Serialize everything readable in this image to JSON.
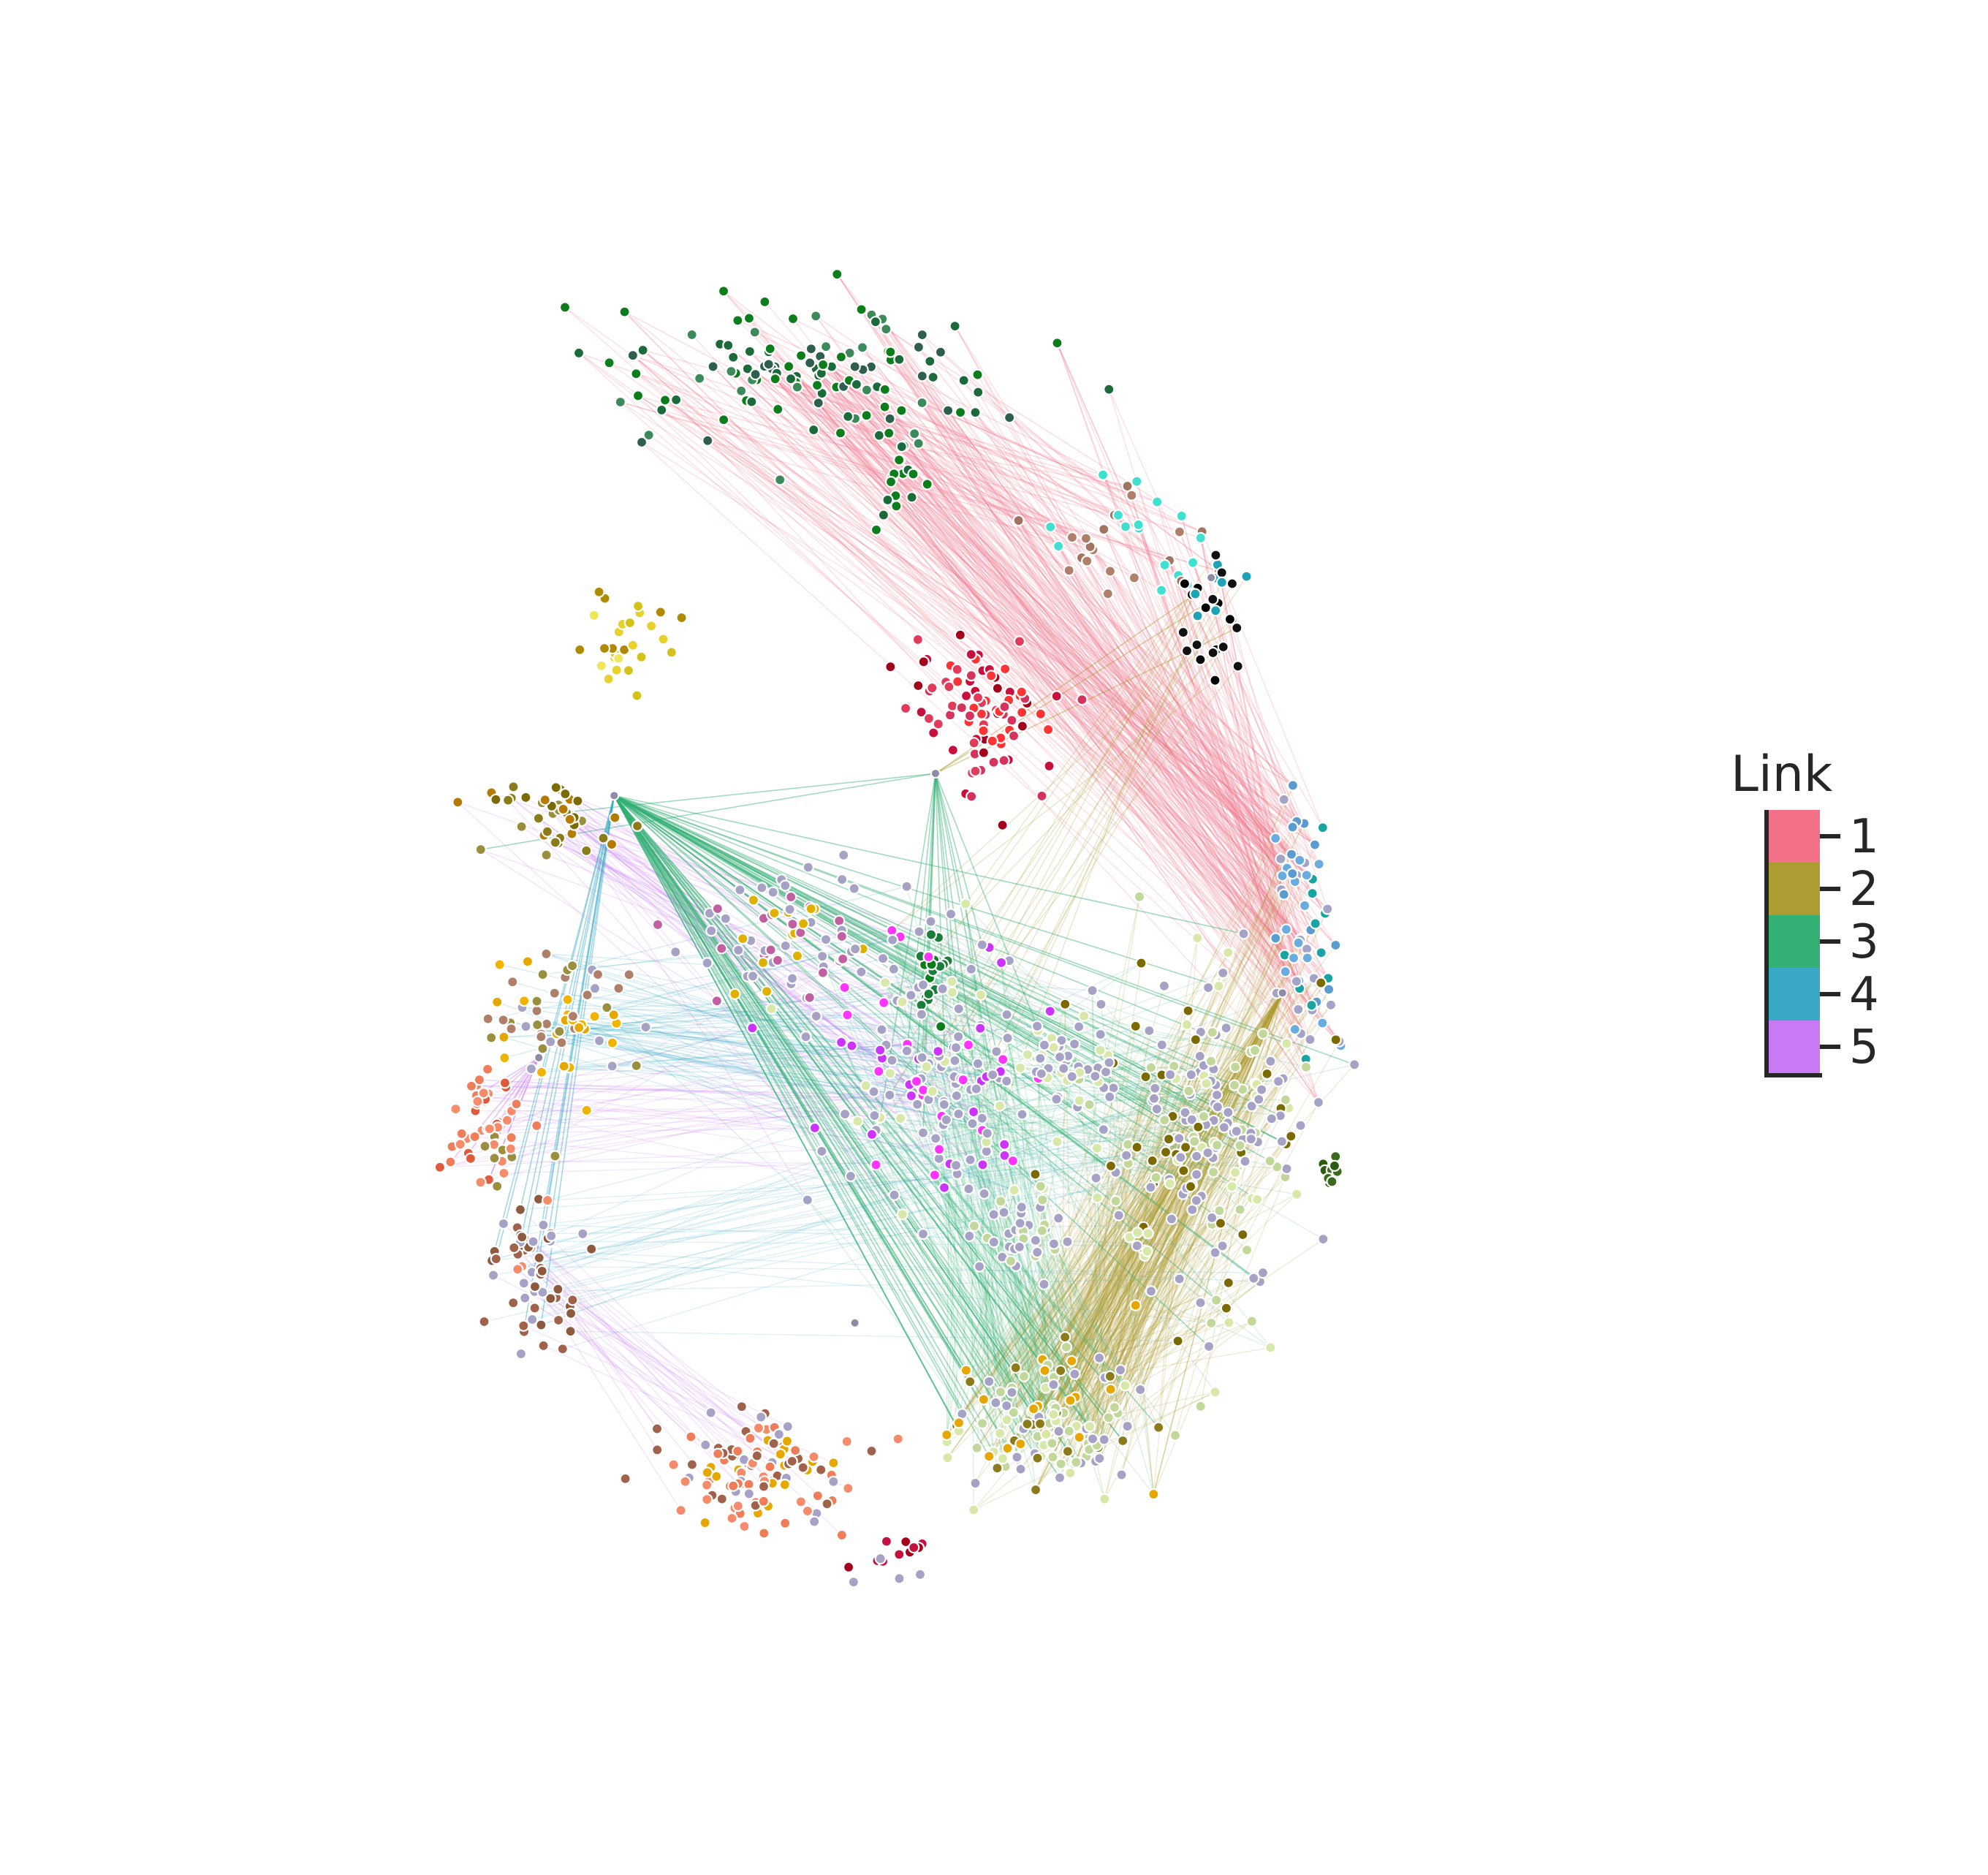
{
  "chart_data": {
    "type": "scatter",
    "description_type": "network-embedding",
    "legend": {
      "title": "Link",
      "placement": "right",
      "entries": [
        {
          "label": "1",
          "color": "#f37188"
        },
        {
          "label": "2",
          "color": "#ad9c31"
        },
        {
          "label": "3",
          "color": "#33b074"
        },
        {
          "label": "4",
          "color": "#38a8c4"
        },
        {
          "label": "5",
          "color": "#c87af5"
        }
      ]
    },
    "edge_colors": {
      "1": "#f37188",
      "2": "#ad9c31",
      "3": "#33b074",
      "4": "#38a8c4",
      "5": "#c87af5"
    },
    "grid": false,
    "axes_visible": false,
    "hubs": [
      {
        "id": "A",
        "x": 0.705,
        "y": 0.736
      },
      {
        "id": "B",
        "x": 0.5,
        "y": 0.612
      },
      {
        "id": "C",
        "x": 0.44,
        "y": 0.264
      },
      {
        "id": "D",
        "x": 0.261,
        "y": 0.598
      },
      {
        "id": "E",
        "x": 0.205,
        "y": 0.432
      },
      {
        "id": "F",
        "x": 0.758,
        "y": 0.473
      }
    ],
    "clusters": [
      {
        "id": "top-greens",
        "x": 0.41,
        "y": 0.87,
        "sx": 0.1,
        "sy": 0.035,
        "n": 120,
        "colors": [
          "#1b6b3a",
          "#0b7d1a",
          "#2e5e4e",
          "#3c8a5a"
        ]
      },
      {
        "id": "top-greens-branch",
        "x": 0.47,
        "y": 0.81,
        "sx": 0.012,
        "sy": 0.04,
        "n": 22,
        "colors": [
          "#0b7d1a",
          "#1b6b3a"
        ]
      },
      {
        "id": "brown-arc",
        "x": 0.64,
        "y": 0.76,
        "sx": 0.05,
        "sy": 0.025,
        "n": 36,
        "colors": [
          "#a0745e",
          "#b07f6a",
          "#40e0d0"
        ]
      },
      {
        "id": "black-ring",
        "x": 0.705,
        "y": 0.715,
        "sx": 0.018,
        "sy": 0.03,
        "n": 30,
        "colors": [
          "#000000",
          "#111111",
          "#1da2b8"
        ]
      },
      {
        "id": "yellow-small",
        "x": 0.265,
        "y": 0.695,
        "sx": 0.03,
        "sy": 0.02,
        "n": 28,
        "colors": [
          "#e6d22a",
          "#d4c21a",
          "#f1e65a",
          "#b08a00"
        ]
      },
      {
        "id": "red-cluster",
        "x": 0.53,
        "y": 0.65,
        "sx": 0.035,
        "sy": 0.03,
        "n": 90,
        "colors": [
          "#c8103c",
          "#e23a5a",
          "#a3001c",
          "#ff3333",
          "#d6335c"
        ]
      },
      {
        "id": "olive-topleft",
        "x": 0.215,
        "y": 0.585,
        "sx": 0.035,
        "sy": 0.02,
        "n": 40,
        "colors": [
          "#7a6a00",
          "#8c7b1a",
          "#b57a00",
          "#9a8f3e"
        ]
      },
      {
        "id": "right-blue-edge",
        "x": 0.775,
        "y": 0.51,
        "sx": 0.015,
        "sy": 0.06,
        "n": 60,
        "colors": [
          "#6aace0",
          "#5a9bd0",
          "#a4a4c8",
          "#1aa3a3"
        ]
      },
      {
        "id": "mid-top-grey",
        "x": 0.39,
        "y": 0.505,
        "sx": 0.045,
        "sy": 0.03,
        "n": 70,
        "colors": [
          "#a5a2c6",
          "#a5a2c6",
          "#e0b000",
          "#c060a0"
        ]
      },
      {
        "id": "green-stem",
        "x": 0.5,
        "y": 0.485,
        "sx": 0.006,
        "sy": 0.02,
        "n": 20,
        "colors": [
          "#0b7d1a",
          "#1b7d3a"
        ]
      },
      {
        "id": "left-yellow-olive",
        "x": 0.22,
        "y": 0.455,
        "sx": 0.04,
        "sy": 0.03,
        "n": 60,
        "colors": [
          "#f0b400",
          "#e6a800",
          "#9a8f3e",
          "#a5a2c6",
          "#b07f6a"
        ]
      },
      {
        "id": "left-orange-coral",
        "x": 0.165,
        "y": 0.385,
        "sx": 0.025,
        "sy": 0.03,
        "n": 50,
        "colors": [
          "#f58b6a",
          "#ef7d5a",
          "#e05a3c",
          "#9a8f3e"
        ]
      },
      {
        "id": "left-brown",
        "x": 0.205,
        "y": 0.295,
        "sx": 0.025,
        "sy": 0.035,
        "n": 60,
        "colors": [
          "#a0624a",
          "#8e5a3e",
          "#f58b6a",
          "#a5a2c6"
        ]
      },
      {
        "id": "center-grey",
        "x": 0.5,
        "y": 0.43,
        "sx": 0.07,
        "sy": 0.06,
        "n": 150,
        "colors": [
          "#a5a2c6",
          "#a5a2c6",
          "#a5a2c6",
          "#d8e8a8",
          "#cc33ff",
          "#ff33ff"
        ]
      },
      {
        "id": "right-grey",
        "x": 0.7,
        "y": 0.38,
        "sx": 0.06,
        "sy": 0.08,
        "n": 200,
        "colors": [
          "#a5a2c6",
          "#a5a2c6",
          "#c2d89a",
          "#d8e8a8",
          "#7a6a00"
        ]
      },
      {
        "id": "right-upper-grey",
        "x": 0.6,
        "y": 0.425,
        "sx": 0.03,
        "sy": 0.02,
        "n": 40,
        "colors": [
          "#a5a2c6",
          "#a5a2c6",
          "#d8e8a8"
        ]
      },
      {
        "id": "bottom-green-arc",
        "x": 0.58,
        "y": 0.2,
        "sx": 0.05,
        "sy": 0.04,
        "n": 120,
        "colors": [
          "#c2d89a",
          "#a5a2c6",
          "#d8e8a8",
          "#8c7b1a",
          "#e6a800"
        ]
      },
      {
        "id": "bottom-left-coral",
        "x": 0.37,
        "y": 0.17,
        "sx": 0.05,
        "sy": 0.025,
        "n": 110,
        "colors": [
          "#f58b6a",
          "#ef7d5a",
          "#a5a2c6",
          "#a0624a",
          "#e6a800"
        ]
      },
      {
        "id": "bottom-red",
        "x": 0.47,
        "y": 0.115,
        "sx": 0.02,
        "sy": 0.01,
        "n": 14,
        "colors": [
          "#c8103c",
          "#a3001c",
          "#a5a2c6"
        ]
      },
      {
        "id": "right-darkgreen",
        "x": 0.795,
        "y": 0.36,
        "sx": 0.006,
        "sy": 0.01,
        "n": 10,
        "colors": [
          "#3a6b1a",
          "#2a5e0e"
        ]
      },
      {
        "id": "center-lower-grey",
        "x": 0.56,
        "y": 0.32,
        "sx": 0.025,
        "sy": 0.02,
        "n": 40,
        "colors": [
          "#a5a2c6",
          "#a5a2c6",
          "#c2d89a"
        ]
      }
    ],
    "edge_bundles": [
      {
        "link": "1",
        "from": "top-greens",
        "to": "right-blue-edge",
        "n": 220,
        "opacity": 0.22
      },
      {
        "link": "1",
        "from": "top-greens",
        "to": "brown-arc",
        "n": 60,
        "opacity": 0.25
      },
      {
        "link": "1",
        "from": "brown-arc",
        "to": "right-blue-edge",
        "n": 80,
        "opacity": 0.22
      },
      {
        "link": "2",
        "from": "right-grey",
        "to": "bottom-green-arc",
        "n": 260,
        "opacity": 0.2
      },
      {
        "link": "2",
        "from": "right-blue-edge",
        "to": "bottom-green-arc",
        "n": 80,
        "opacity": 0.2
      },
      {
        "link": "2",
        "from": "black-ring",
        "to": "center-grey",
        "n": 20,
        "opacity": 0.25
      },
      {
        "link": "3",
        "from": "center-grey",
        "to": "bottom-green-arc",
        "n": 160,
        "opacity": 0.18
      },
      {
        "link": "3",
        "from": "center-grey",
        "to": "right-grey",
        "n": 90,
        "opacity": 0.16
      },
      {
        "link": "4",
        "from": "left-yellow-olive",
        "to": "center-grey",
        "n": 80,
        "opacity": 0.2
      },
      {
        "link": "4",
        "from": "left-brown",
        "to": "right-grey",
        "n": 40,
        "opacity": 0.16
      },
      {
        "link": "5",
        "from": "olive-topleft",
        "to": "center-grey",
        "n": 60,
        "opacity": 0.22
      },
      {
        "link": "5",
        "from": "left-orange-coral",
        "to": "center-grey",
        "n": 40,
        "opacity": 0.18
      },
      {
        "link": "5",
        "from": "left-brown",
        "to": "bottom-left-coral",
        "n": 30,
        "opacity": 0.2
      }
    ],
    "hub_edges": [
      {
        "link": "2",
        "hub": "B",
        "to": "black-ring",
        "n": 3
      },
      {
        "link": "3",
        "hub": "B",
        "to": "olive-topleft",
        "n": 2
      },
      {
        "link": "3",
        "hub": "B",
        "to": "center-grey",
        "n": 14
      },
      {
        "link": "3",
        "hub": "D",
        "to": "right-grey",
        "n": 40
      },
      {
        "link": "3",
        "hub": "D",
        "to": "bottom-green-arc",
        "n": 40
      },
      {
        "link": "4",
        "hub": "D",
        "to": "left-brown",
        "n": 10
      },
      {
        "link": "5",
        "hub": "E",
        "to": "left-orange-coral",
        "n": 10
      },
      {
        "link": "2",
        "hub": "F",
        "to": "bottom-green-arc",
        "n": 30
      }
    ]
  }
}
